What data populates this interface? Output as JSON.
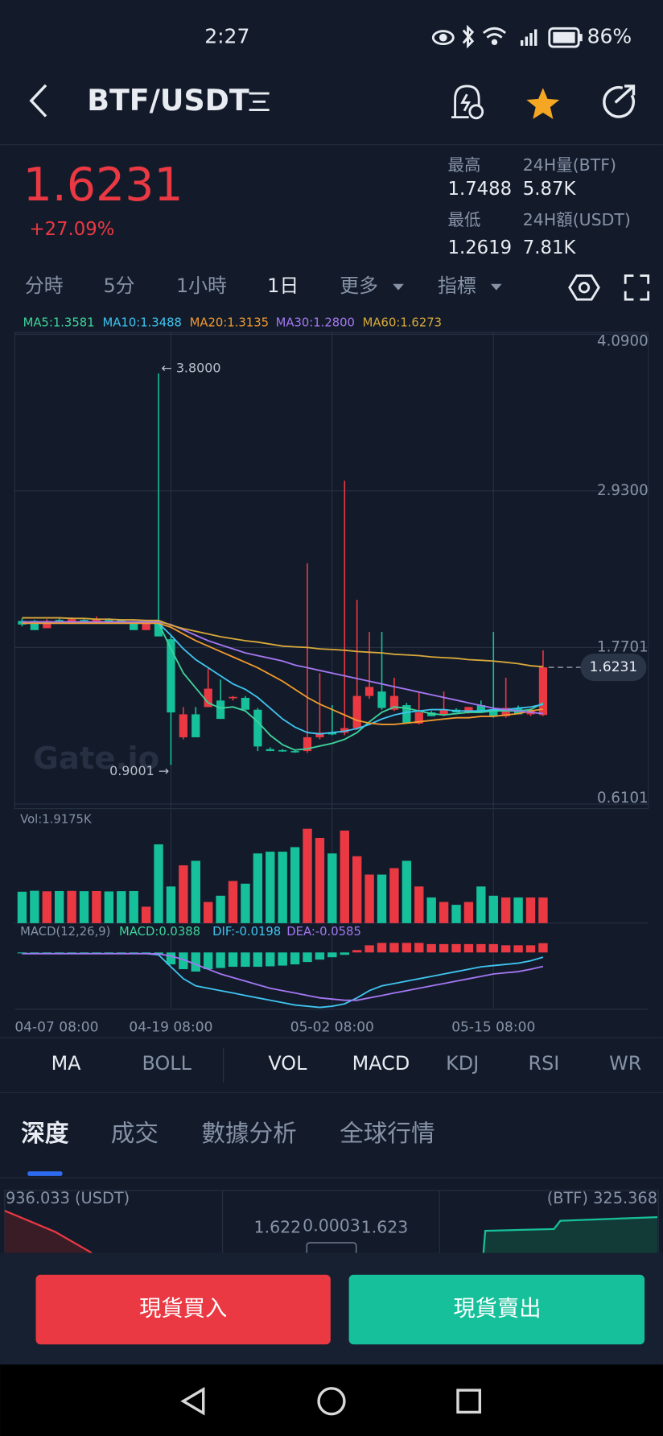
{
  "status_bar": {
    "time": "2:27",
    "battery": "86%"
  },
  "header": {
    "pair": "BTF/USDT"
  },
  "ticker": {
    "price": "1.6231",
    "change": "+27.09%",
    "stats": [
      {
        "label": "最高",
        "value": "1.7488"
      },
      {
        "label": "24H量(BTF)",
        "value": "5.87K"
      },
      {
        "label": "最低",
        "value": "1.2619"
      },
      {
        "label": "24H額(USDT)",
        "value": "7.81K"
      }
    ]
  },
  "intervals": [
    "分時",
    "5分",
    "1小時",
    "1日",
    "更多",
    "指標"
  ],
  "chart_data": {
    "type": "candlestick",
    "watermark": "Gate.io",
    "categories": [
      "04-07 08:00",
      null,
      null,
      null,
      null,
      null,
      null,
      null,
      null,
      null,
      null,
      null,
      "04-19 08:00",
      null,
      null,
      null,
      null,
      null,
      null,
      null,
      null,
      null,
      null,
      null,
      null,
      "05-02 08:00",
      null,
      null,
      null,
      null,
      null,
      null,
      null,
      null,
      null,
      null,
      null,
      null,
      "05-15 08:00",
      null,
      null,
      null,
      null
    ],
    "open": [
      1.967,
      1.967,
      1.913,
      1.974,
      1.953,
      1.974,
      1.953,
      1.974,
      1.974,
      1.953,
      1.899,
      1.967,
      1.831,
      1.105,
      1.275,
      1.329,
      1.377,
      1.397,
      1.397,
      1.309,
      1.017,
      1.01,
      1.003,
      1.003,
      1.105,
      1.139,
      1.139,
      1.173,
      1.411,
      1.444,
      1.309,
      1.343,
      1.207,
      1.289,
      1.275,
      1.309,
      1.289,
      1.343,
      1.309,
      1.261,
      1.322,
      1.275,
      1.27
    ],
    "high": [
      1.987,
      1.974,
      1.98,
      1.987,
      1.994,
      1.987,
      2.0,
      1.987,
      1.98,
      1.967,
      1.974,
      3.8,
      1.852,
      1.329,
      1.329,
      1.614,
      1.533,
      1.411,
      1.411,
      1.322,
      1.03,
      1.017,
      1.01,
      2.394,
      1.58,
      1.343,
      3.005,
      2.123,
      1.885,
      1.885,
      1.546,
      1.36,
      1.444,
      1.3,
      1.444,
      1.32,
      1.33,
      1.377,
      1.885,
      1.546,
      1.34,
      1.32,
      1.7488
    ],
    "low": [
      1.926,
      1.899,
      1.913,
      1.947,
      1.953,
      1.953,
      1.953,
      1.953,
      1.953,
      1.899,
      1.899,
      1.852,
      0.9001,
      1.09,
      1.105,
      1.329,
      1.241,
      1.377,
      1.309,
      1.003,
      1.003,
      0.997,
      0.99,
      0.99,
      1.09,
      1.12,
      1.12,
      1.16,
      1.39,
      1.309,
      1.3,
      1.207,
      1.2,
      1.261,
      1.261,
      1.289,
      1.28,
      1.3,
      1.25,
      1.25,
      1.275,
      1.262,
      1.2619
    ],
    "close": [
      1.94,
      1.899,
      1.967,
      1.947,
      1.98,
      1.953,
      1.98,
      1.953,
      1.953,
      1.899,
      1.953,
      1.852,
      1.289,
      1.275,
      1.105,
      1.465,
      1.241,
      1.404,
      1.309,
      1.037,
      1.003,
      1.003,
      0.997,
      1.105,
      1.139,
      1.126,
      1.173,
      1.411,
      1.478,
      1.322,
      1.411,
      1.207,
      1.289,
      1.261,
      1.309,
      1.289,
      1.329,
      1.302,
      1.261,
      1.322,
      1.275,
      1.309,
      1.6231
    ],
    "up_color": "#ea3943",
    "down_color": "#16c09a",
    "ylim": [
      0.6101,
      4.09
    ],
    "yticks": [
      0.6101,
      1.7701,
      {
        "value": 2.93,
        "label": "2.9300"
      },
      {
        "value": 4.09,
        "label": "4.0900"
      }
    ],
    "grid": true,
    "max_label": "← 3.8000",
    "min_label": "0.9001 →",
    "last_label": "1.6231",
    "ma_series": [
      {
        "name": "MA5:1.3581",
        "color": "#3ed49b",
        "values": [
          1.95,
          1.95,
          1.95,
          1.95,
          1.95,
          1.95,
          1.95,
          1.95,
          1.95,
          1.95,
          1.95,
          1.95,
          1.76,
          1.58,
          1.47,
          1.36,
          1.32,
          1.33,
          1.3,
          1.22,
          1.12,
          1.05,
          1.01,
          1.02,
          1.04,
          1.06,
          1.09,
          1.14,
          1.22,
          1.29,
          1.33,
          1.32,
          1.3,
          1.28,
          1.27,
          1.28,
          1.29,
          1.29,
          1.3,
          1.3,
          1.3,
          1.31,
          1.3581
        ]
      },
      {
        "name": "MA10:1.3488",
        "color": "#3fc4f0",
        "values": [
          1.95,
          1.95,
          1.95,
          1.95,
          1.95,
          1.95,
          1.95,
          1.95,
          1.95,
          1.95,
          1.95,
          1.95,
          1.86,
          1.76,
          1.68,
          1.62,
          1.56,
          1.5,
          1.46,
          1.4,
          1.32,
          1.24,
          1.18,
          1.14,
          1.13,
          1.14,
          1.15,
          1.17,
          1.2,
          1.24,
          1.27,
          1.29,
          1.3,
          1.31,
          1.31,
          1.3,
          1.3,
          1.3,
          1.31,
          1.31,
          1.32,
          1.33,
          1.3488
        ]
      },
      {
        "name": "MA20:1.3135",
        "color": "#f29a2e",
        "values": [
          1.95,
          1.95,
          1.95,
          1.95,
          1.95,
          1.95,
          1.95,
          1.95,
          1.95,
          1.95,
          1.95,
          1.95,
          1.92,
          1.87,
          1.82,
          1.78,
          1.74,
          1.7,
          1.66,
          1.62,
          1.57,
          1.52,
          1.46,
          1.4,
          1.35,
          1.31,
          1.27,
          1.23,
          1.21,
          1.2,
          1.2,
          1.21,
          1.22,
          1.23,
          1.24,
          1.25,
          1.25,
          1.26,
          1.26,
          1.27,
          1.28,
          1.3,
          1.3135
        ]
      },
      {
        "name": "MA30:1.2800",
        "color": "#a477f2",
        "values": [
          1.96,
          1.96,
          1.96,
          1.96,
          1.96,
          1.96,
          1.96,
          1.96,
          1.96,
          1.96,
          1.96,
          1.96,
          1.94,
          1.9,
          1.86,
          1.82,
          1.79,
          1.76,
          1.73,
          1.71,
          1.69,
          1.67,
          1.64,
          1.62,
          1.6,
          1.58,
          1.56,
          1.54,
          1.52,
          1.5,
          1.48,
          1.46,
          1.44,
          1.42,
          1.4,
          1.38,
          1.36,
          1.34,
          1.32,
          1.31,
          1.3,
          1.29,
          1.28
        ]
      },
      {
        "name": "MA60:1.6273",
        "color": "#d9a93a",
        "values": [
          1.99,
          1.99,
          1.99,
          1.99,
          1.985,
          1.985,
          1.98,
          1.98,
          1.975,
          1.975,
          1.97,
          1.97,
          1.935,
          1.91,
          1.89,
          1.87,
          1.85,
          1.835,
          1.82,
          1.81,
          1.795,
          1.78,
          1.775,
          1.77,
          1.76,
          1.755,
          1.75,
          1.74,
          1.735,
          1.73,
          1.72,
          1.715,
          1.71,
          1.7,
          1.695,
          1.69,
          1.68,
          1.675,
          1.67,
          1.66,
          1.65,
          1.635,
          1.6273
        ]
      }
    ],
    "volume": {
      "label": "Vol:1.9175K",
      "values": [
        2350,
        2420,
        2380,
        2400,
        2410,
        2390,
        2400,
        2370,
        2390,
        2400,
        1230,
        5890,
        2740,
        4320,
        4660,
        1580,
        2050,
        3150,
        2950,
        5210,
        5340,
        5340,
        5680,
        7050,
        6370,
        5210,
        6920,
        5000,
        3630,
        3630,
        4110,
        4660,
        2740,
        1920,
        1580,
        1370,
        1580,
        2740,
        2050,
        1920,
        1920,
        1920,
        1917.5
      ]
    },
    "macd": {
      "label": "MACD(12,26,9)",
      "hist_label": "MACD:0.0388",
      "dif_label": "DIF:-0.0198",
      "dea_label": "DEA:-0.0585",
      "hist_color": "#3ed49b",
      "dif_color": "#3fc4f0",
      "dea_color": "#a477f2",
      "hist": [
        -0.002,
        -0.002,
        -0.002,
        -0.002,
        -0.002,
        -0.002,
        -0.002,
        -0.002,
        -0.002,
        -0.002,
        -0.002,
        -0.01,
        -0.05,
        -0.07,
        -0.08,
        -0.07,
        -0.065,
        -0.06,
        -0.06,
        -0.06,
        -0.058,
        -0.055,
        -0.05,
        -0.04,
        -0.03,
        -0.02,
        -0.01,
        0.01,
        0.03,
        0.04,
        0.04,
        0.04,
        0.04,
        0.035,
        0.035,
        0.035,
        0.035,
        0.035,
        0.035,
        0.03,
        0.03,
        0.03,
        0.0388
      ],
      "dif": [
        -0.005,
        -0.005,
        -0.005,
        -0.005,
        -0.005,
        -0.005,
        -0.005,
        -0.005,
        -0.005,
        -0.005,
        -0.005,
        -0.01,
        -0.06,
        -0.11,
        -0.14,
        -0.15,
        -0.16,
        -0.17,
        -0.18,
        -0.19,
        -0.2,
        -0.21,
        -0.22,
        -0.225,
        -0.23,
        -0.225,
        -0.215,
        -0.19,
        -0.16,
        -0.14,
        -0.13,
        -0.12,
        -0.11,
        -0.1,
        -0.09,
        -0.08,
        -0.07,
        -0.06,
        -0.055,
        -0.05,
        -0.045,
        -0.035,
        -0.0198
      ],
      "dea": [
        -0.005,
        -0.005,
        -0.005,
        -0.005,
        -0.005,
        -0.005,
        -0.005,
        -0.005,
        -0.005,
        -0.005,
        -0.005,
        -0.006,
        -0.015,
        -0.03,
        -0.05,
        -0.07,
        -0.09,
        -0.105,
        -0.12,
        -0.135,
        -0.15,
        -0.16,
        -0.17,
        -0.18,
        -0.19,
        -0.195,
        -0.2,
        -0.2,
        -0.19,
        -0.18,
        -0.17,
        -0.16,
        -0.15,
        -0.14,
        -0.13,
        -0.12,
        -0.11,
        -0.1,
        -0.09,
        -0.085,
        -0.08,
        -0.07,
        -0.0585
      ]
    }
  },
  "indicator_tabs": [
    "MA",
    "BOLL",
    "VOL",
    "MACD",
    "KDJ",
    "RSI",
    "WR"
  ],
  "section_tabs": [
    "深度",
    "成交",
    "數據分析",
    "全球行情"
  ],
  "depth": {
    "bid_total": "936.033 (USDT)",
    "ask_total": "(BTF) 325.368",
    "bid": "1.622",
    "spread": "0.0003",
    "ask": "1.623"
  },
  "buttons": {
    "buy": "現貨買入",
    "sell": "現貨賣出"
  }
}
